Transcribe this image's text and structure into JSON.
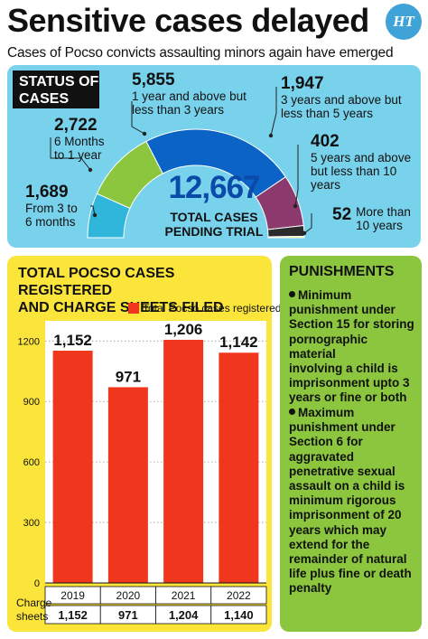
{
  "header": {
    "title": "Sensitive cases delayed",
    "subtitle": "Cases of Pocso convicts assaulting minors again have emerged",
    "logo_text": "HT"
  },
  "status": {
    "label_line1": "STATUS OF",
    "label_line2": "CASES",
    "total_value": "12,667",
    "total_label_line1": "TOTAL CASES",
    "total_label_line2": "PENDING TRIAL",
    "segments": [
      {
        "value": "1,689",
        "value_num": 1689,
        "line1": "From 3 to",
        "line2": "6 months",
        "line3": "",
        "color": "#2fb6da"
      },
      {
        "value": "2,722",
        "value_num": 2722,
        "line1": "6 Months",
        "line2": "to 1 year",
        "line3": "",
        "color": "#8cc63f"
      },
      {
        "value": "5,855",
        "value_num": 5855,
        "line1": "1 year and above but",
        "line2": "less than 3 years",
        "line3": "",
        "color": "#0b63c5"
      },
      {
        "value": "1,947",
        "value_num": 1947,
        "line1": "3 years and above but",
        "line2": "less than 5 years",
        "line3": "",
        "color": "#8c3a6e"
      },
      {
        "value": "402",
        "value_num": 402,
        "line1": "5 years and above",
        "line2": "but less than 10",
        "line3": "years",
        "color": "#2b2b2b"
      },
      {
        "value": "52",
        "value_num": 52,
        "line1": "More than",
        "line2": "10 years",
        "line3": "",
        "color": "#f2d41c"
      }
    ]
  },
  "bar_panel": {
    "title_line1": "TOTAL POCSO CASES REGISTERED",
    "title_line2": "AND CHARGE SHEETS FILED",
    "charge_label_line1": "Charge",
    "charge_label_line2": "sheets",
    "charge_sheets": [
      "1,152",
      "971",
      "1,204",
      "1,140"
    ]
  },
  "chart_data": {
    "type": "bar",
    "title": "TOTAL POCSO CASES REGISTERED AND CHARGE SHEETS FILED",
    "categories": [
      "2019",
      "2020",
      "2021",
      "2022"
    ],
    "series": [
      {
        "name": "Total Pocso cases registered",
        "values": [
          1152,
          971,
          1206,
          1142
        ],
        "labels": [
          "1,152",
          "971",
          "1,206",
          "1,142"
        ],
        "color": "#f0371e"
      }
    ],
    "yticks": [
      0,
      300,
      600,
      900,
      1200
    ],
    "ylim": [
      0,
      1300
    ],
    "legend": "top-right",
    "grid": false
  },
  "punishments": {
    "title": "PUNISHMENTS",
    "items": [
      {
        "lines": [
          "Minimum",
          "punishment under",
          "Section 15 for storing",
          "pornographic material",
          "involving a child is",
          "imprisonment upto 3",
          "years or fine or both"
        ]
      },
      {
        "lines": [
          "Maximum",
          "punishment under",
          "Section 6 for",
          "aggravated",
          "penetrative sexual",
          "assault on a child is",
          "minimum rigorous",
          "imprisonment of 20",
          "years which may",
          "extend for the",
          "remainder of natural",
          "life plus fine or death",
          "penalty"
        ]
      }
    ]
  }
}
